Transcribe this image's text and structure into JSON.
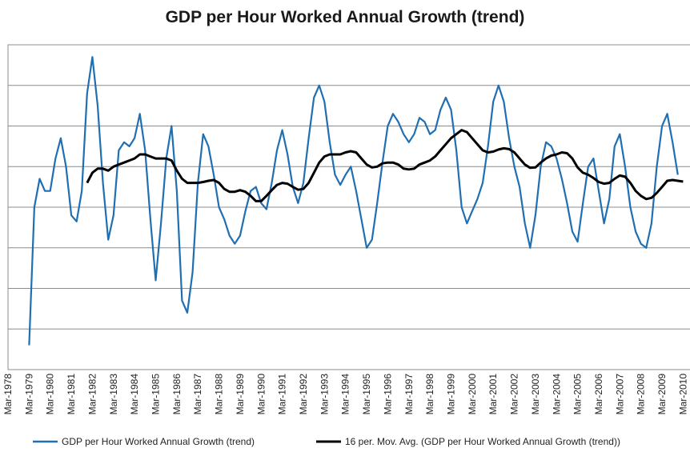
{
  "chart_data": {
    "type": "line",
    "title": "GDP per Hour Worked Annual Growth (trend)",
    "xlabel": "",
    "ylabel": "",
    "x_tick_labels": [
      "Mar-1978",
      "Mar-1979",
      "Mar-1980",
      "Mar-1981",
      "Mar-1982",
      "Mar-1983",
      "Mar-1984",
      "Mar-1985",
      "Mar-1986",
      "Mar-1987",
      "Mar-1988",
      "Mar-1989",
      "Mar-1990",
      "Mar-1991",
      "Mar-1992",
      "Mar-1993",
      "Mar-1994",
      "Mar-1995",
      "Mar-1996",
      "Mar-1997",
      "Mar-1998",
      "Mar-1999",
      "Mar-2000",
      "Mar-2001",
      "Mar-2002",
      "Mar-2003",
      "Mar-2004",
      "Mar-2005",
      "Mar-2006",
      "Mar-2007",
      "Mar-2008",
      "Mar-2009",
      "Mar-2010"
    ],
    "x_range": [
      1978.0,
      2010.25
    ],
    "y_range": [
      -4.0,
      4.0
    ],
    "grid": true,
    "legend_position": "bottom",
    "series": [
      {
        "name": "GDP per Hour Worked Annual Growth (trend)",
        "color": "#1f6fb2",
        "points": [
          [
            1979.0,
            -3.4
          ],
          [
            1979.25,
            0.0
          ],
          [
            1979.5,
            0.7
          ],
          [
            1979.75,
            0.4
          ],
          [
            1980.0,
            0.4
          ],
          [
            1980.25,
            1.2
          ],
          [
            1980.5,
            1.7
          ],
          [
            1980.75,
            1.0
          ],
          [
            1981.0,
            -0.2
          ],
          [
            1981.25,
            -0.35
          ],
          [
            1981.5,
            0.4
          ],
          [
            1981.75,
            2.8
          ],
          [
            1982.0,
            3.7
          ],
          [
            1982.25,
            2.5
          ],
          [
            1982.5,
            0.6
          ],
          [
            1982.75,
            -0.8
          ],
          [
            1983.0,
            -0.2
          ],
          [
            1983.25,
            1.4
          ],
          [
            1983.5,
            1.6
          ],
          [
            1983.75,
            1.5
          ],
          [
            1984.0,
            1.7
          ],
          [
            1984.25,
            2.3
          ],
          [
            1984.5,
            1.4
          ],
          [
            1984.75,
            -0.3
          ],
          [
            1985.0,
            -1.8
          ],
          [
            1985.25,
            -0.4
          ],
          [
            1985.5,
            1.2
          ],
          [
            1985.75,
            2.0
          ],
          [
            1986.0,
            0.4
          ],
          [
            1986.25,
            -2.3
          ],
          [
            1986.5,
            -2.6
          ],
          [
            1986.75,
            -1.6
          ],
          [
            1987.0,
            0.6
          ],
          [
            1987.25,
            1.8
          ],
          [
            1987.5,
            1.5
          ],
          [
            1987.75,
            0.8
          ],
          [
            1988.0,
            0.0
          ],
          [
            1988.25,
            -0.3
          ],
          [
            1988.5,
            -0.7
          ],
          [
            1988.75,
            -0.9
          ],
          [
            1989.0,
            -0.7
          ],
          [
            1989.25,
            -0.1
          ],
          [
            1989.5,
            0.4
          ],
          [
            1989.75,
            0.5
          ],
          [
            1990.0,
            0.1
          ],
          [
            1990.25,
            -0.05
          ],
          [
            1990.5,
            0.6
          ],
          [
            1990.75,
            1.4
          ],
          [
            1991.0,
            1.9
          ],
          [
            1991.25,
            1.3
          ],
          [
            1991.5,
            0.5
          ],
          [
            1991.75,
            0.1
          ],
          [
            1992.0,
            0.6
          ],
          [
            1992.25,
            1.7
          ],
          [
            1992.5,
            2.7
          ],
          [
            1992.75,
            3.0
          ],
          [
            1993.0,
            2.6
          ],
          [
            1993.25,
            1.6
          ],
          [
            1993.5,
            0.8
          ],
          [
            1993.75,
            0.55
          ],
          [
            1994.0,
            0.8
          ],
          [
            1994.25,
            1.0
          ],
          [
            1994.5,
            0.4
          ],
          [
            1994.75,
            -0.3
          ],
          [
            1995.0,
            -1.0
          ],
          [
            1995.25,
            -0.8
          ],
          [
            1995.5,
            0.1
          ],
          [
            1995.75,
            1.1
          ],
          [
            1996.0,
            2.0
          ],
          [
            1996.25,
            2.3
          ],
          [
            1996.5,
            2.1
          ],
          [
            1996.75,
            1.8
          ],
          [
            1997.0,
            1.6
          ],
          [
            1997.25,
            1.8
          ],
          [
            1997.5,
            2.2
          ],
          [
            1997.75,
            2.1
          ],
          [
            1998.0,
            1.8
          ],
          [
            1998.25,
            1.9
          ],
          [
            1998.5,
            2.4
          ],
          [
            1998.75,
            2.7
          ],
          [
            1999.0,
            2.4
          ],
          [
            1999.25,
            1.4
          ],
          [
            1999.5,
            0.0
          ],
          [
            1999.75,
            -0.4
          ],
          [
            2000.0,
            -0.1
          ],
          [
            2000.25,
            0.2
          ],
          [
            2000.5,
            0.6
          ],
          [
            2000.75,
            1.5
          ],
          [
            2001.0,
            2.6
          ],
          [
            2001.25,
            3.0
          ],
          [
            2001.5,
            2.6
          ],
          [
            2001.75,
            1.7
          ],
          [
            2002.0,
            1.0
          ],
          [
            2002.25,
            0.5
          ],
          [
            2002.5,
            -0.4
          ],
          [
            2002.75,
            -1.0
          ],
          [
            2003.0,
            -0.2
          ],
          [
            2003.25,
            1.0
          ],
          [
            2003.5,
            1.6
          ],
          [
            2003.75,
            1.5
          ],
          [
            2004.0,
            1.2
          ],
          [
            2004.25,
            0.7
          ],
          [
            2004.5,
            0.1
          ],
          [
            2004.75,
            -0.6
          ],
          [
            2005.0,
            -0.85
          ],
          [
            2005.25,
            0.1
          ],
          [
            2005.5,
            1.0
          ],
          [
            2005.75,
            1.2
          ],
          [
            2006.0,
            0.4
          ],
          [
            2006.25,
            -0.4
          ],
          [
            2006.5,
            0.2
          ],
          [
            2006.75,
            1.5
          ],
          [
            2007.0,
            1.8
          ],
          [
            2007.25,
            1.0
          ],
          [
            2007.5,
            0.0
          ],
          [
            2007.75,
            -0.6
          ],
          [
            2008.0,
            -0.9
          ],
          [
            2008.25,
            -1.0
          ],
          [
            2008.5,
            -0.4
          ],
          [
            2008.75,
            1.0
          ],
          [
            2009.0,
            2.0
          ],
          [
            2009.25,
            2.3
          ],
          [
            2009.5,
            1.6
          ],
          [
            2009.75,
            0.8
          ]
        ]
      },
      {
        "name": "16 per. Mov. Avg. (GDP per Hour Worked Annual Growth (trend))",
        "color": "#000000",
        "points": [
          [
            1981.75,
            0.6
          ],
          [
            1982.0,
            0.85
          ],
          [
            1982.25,
            0.95
          ],
          [
            1982.5,
            0.95
          ],
          [
            1982.75,
            0.9
          ],
          [
            1983.0,
            1.0
          ],
          [
            1983.25,
            1.05
          ],
          [
            1983.5,
            1.1
          ],
          [
            1983.75,
            1.15
          ],
          [
            1984.0,
            1.2
          ],
          [
            1984.25,
            1.3
          ],
          [
            1984.5,
            1.3
          ],
          [
            1984.75,
            1.25
          ],
          [
            1985.0,
            1.2
          ],
          [
            1985.25,
            1.2
          ],
          [
            1985.5,
            1.2
          ],
          [
            1985.75,
            1.15
          ],
          [
            1986.0,
            0.9
          ],
          [
            1986.25,
            0.7
          ],
          [
            1986.5,
            0.6
          ],
          [
            1986.75,
            0.6
          ],
          [
            1987.0,
            0.6
          ],
          [
            1987.25,
            0.62
          ],
          [
            1987.5,
            0.65
          ],
          [
            1987.75,
            0.67
          ],
          [
            1988.0,
            0.6
          ],
          [
            1988.25,
            0.45
          ],
          [
            1988.5,
            0.38
          ],
          [
            1988.75,
            0.38
          ],
          [
            1989.0,
            0.42
          ],
          [
            1989.25,
            0.38
          ],
          [
            1989.5,
            0.28
          ],
          [
            1989.75,
            0.15
          ],
          [
            1990.0,
            0.15
          ],
          [
            1990.25,
            0.28
          ],
          [
            1990.5,
            0.42
          ],
          [
            1990.75,
            0.55
          ],
          [
            1991.0,
            0.6
          ],
          [
            1991.25,
            0.58
          ],
          [
            1991.5,
            0.5
          ],
          [
            1991.75,
            0.43
          ],
          [
            1992.0,
            0.45
          ],
          [
            1992.25,
            0.6
          ],
          [
            1992.5,
            0.85
          ],
          [
            1992.75,
            1.1
          ],
          [
            1993.0,
            1.25
          ],
          [
            1993.25,
            1.3
          ],
          [
            1993.5,
            1.3
          ],
          [
            1993.75,
            1.3
          ],
          [
            1994.0,
            1.35
          ],
          [
            1994.25,
            1.38
          ],
          [
            1994.5,
            1.35
          ],
          [
            1994.75,
            1.2
          ],
          [
            1995.0,
            1.05
          ],
          [
            1995.25,
            0.98
          ],
          [
            1995.5,
            1.0
          ],
          [
            1995.75,
            1.08
          ],
          [
            1996.0,
            1.1
          ],
          [
            1996.25,
            1.1
          ],
          [
            1996.5,
            1.05
          ],
          [
            1996.75,
            0.95
          ],
          [
            1997.0,
            0.93
          ],
          [
            1997.25,
            0.95
          ],
          [
            1997.5,
            1.05
          ],
          [
            1997.75,
            1.1
          ],
          [
            1998.0,
            1.15
          ],
          [
            1998.25,
            1.25
          ],
          [
            1998.5,
            1.4
          ],
          [
            1998.75,
            1.55
          ],
          [
            1999.0,
            1.7
          ],
          [
            1999.25,
            1.8
          ],
          [
            1999.5,
            1.9
          ],
          [
            1999.75,
            1.85
          ],
          [
            2000.0,
            1.7
          ],
          [
            2000.25,
            1.55
          ],
          [
            2000.5,
            1.4
          ],
          [
            2000.75,
            1.35
          ],
          [
            2001.0,
            1.37
          ],
          [
            2001.25,
            1.42
          ],
          [
            2001.5,
            1.45
          ],
          [
            2001.75,
            1.43
          ],
          [
            2002.0,
            1.35
          ],
          [
            2002.25,
            1.2
          ],
          [
            2002.5,
            1.05
          ],
          [
            2002.75,
            0.97
          ],
          [
            2003.0,
            0.98
          ],
          [
            2003.25,
            1.1
          ],
          [
            2003.5,
            1.2
          ],
          [
            2003.75,
            1.27
          ],
          [
            2004.0,
            1.3
          ],
          [
            2004.25,
            1.35
          ],
          [
            2004.5,
            1.33
          ],
          [
            2004.75,
            1.2
          ],
          [
            2005.0,
            0.98
          ],
          [
            2005.25,
            0.85
          ],
          [
            2005.5,
            0.8
          ],
          [
            2005.75,
            0.72
          ],
          [
            2006.0,
            0.62
          ],
          [
            2006.25,
            0.58
          ],
          [
            2006.5,
            0.6
          ],
          [
            2006.75,
            0.7
          ],
          [
            2007.0,
            0.78
          ],
          [
            2007.25,
            0.75
          ],
          [
            2007.5,
            0.6
          ],
          [
            2007.75,
            0.4
          ],
          [
            2008.0,
            0.28
          ],
          [
            2008.25,
            0.2
          ],
          [
            2008.5,
            0.23
          ],
          [
            2008.75,
            0.35
          ],
          [
            2009.0,
            0.5
          ],
          [
            2009.25,
            0.65
          ],
          [
            2009.5,
            0.67
          ],
          [
            2009.75,
            0.65
          ],
          [
            2010.0,
            0.63
          ]
        ]
      }
    ]
  }
}
